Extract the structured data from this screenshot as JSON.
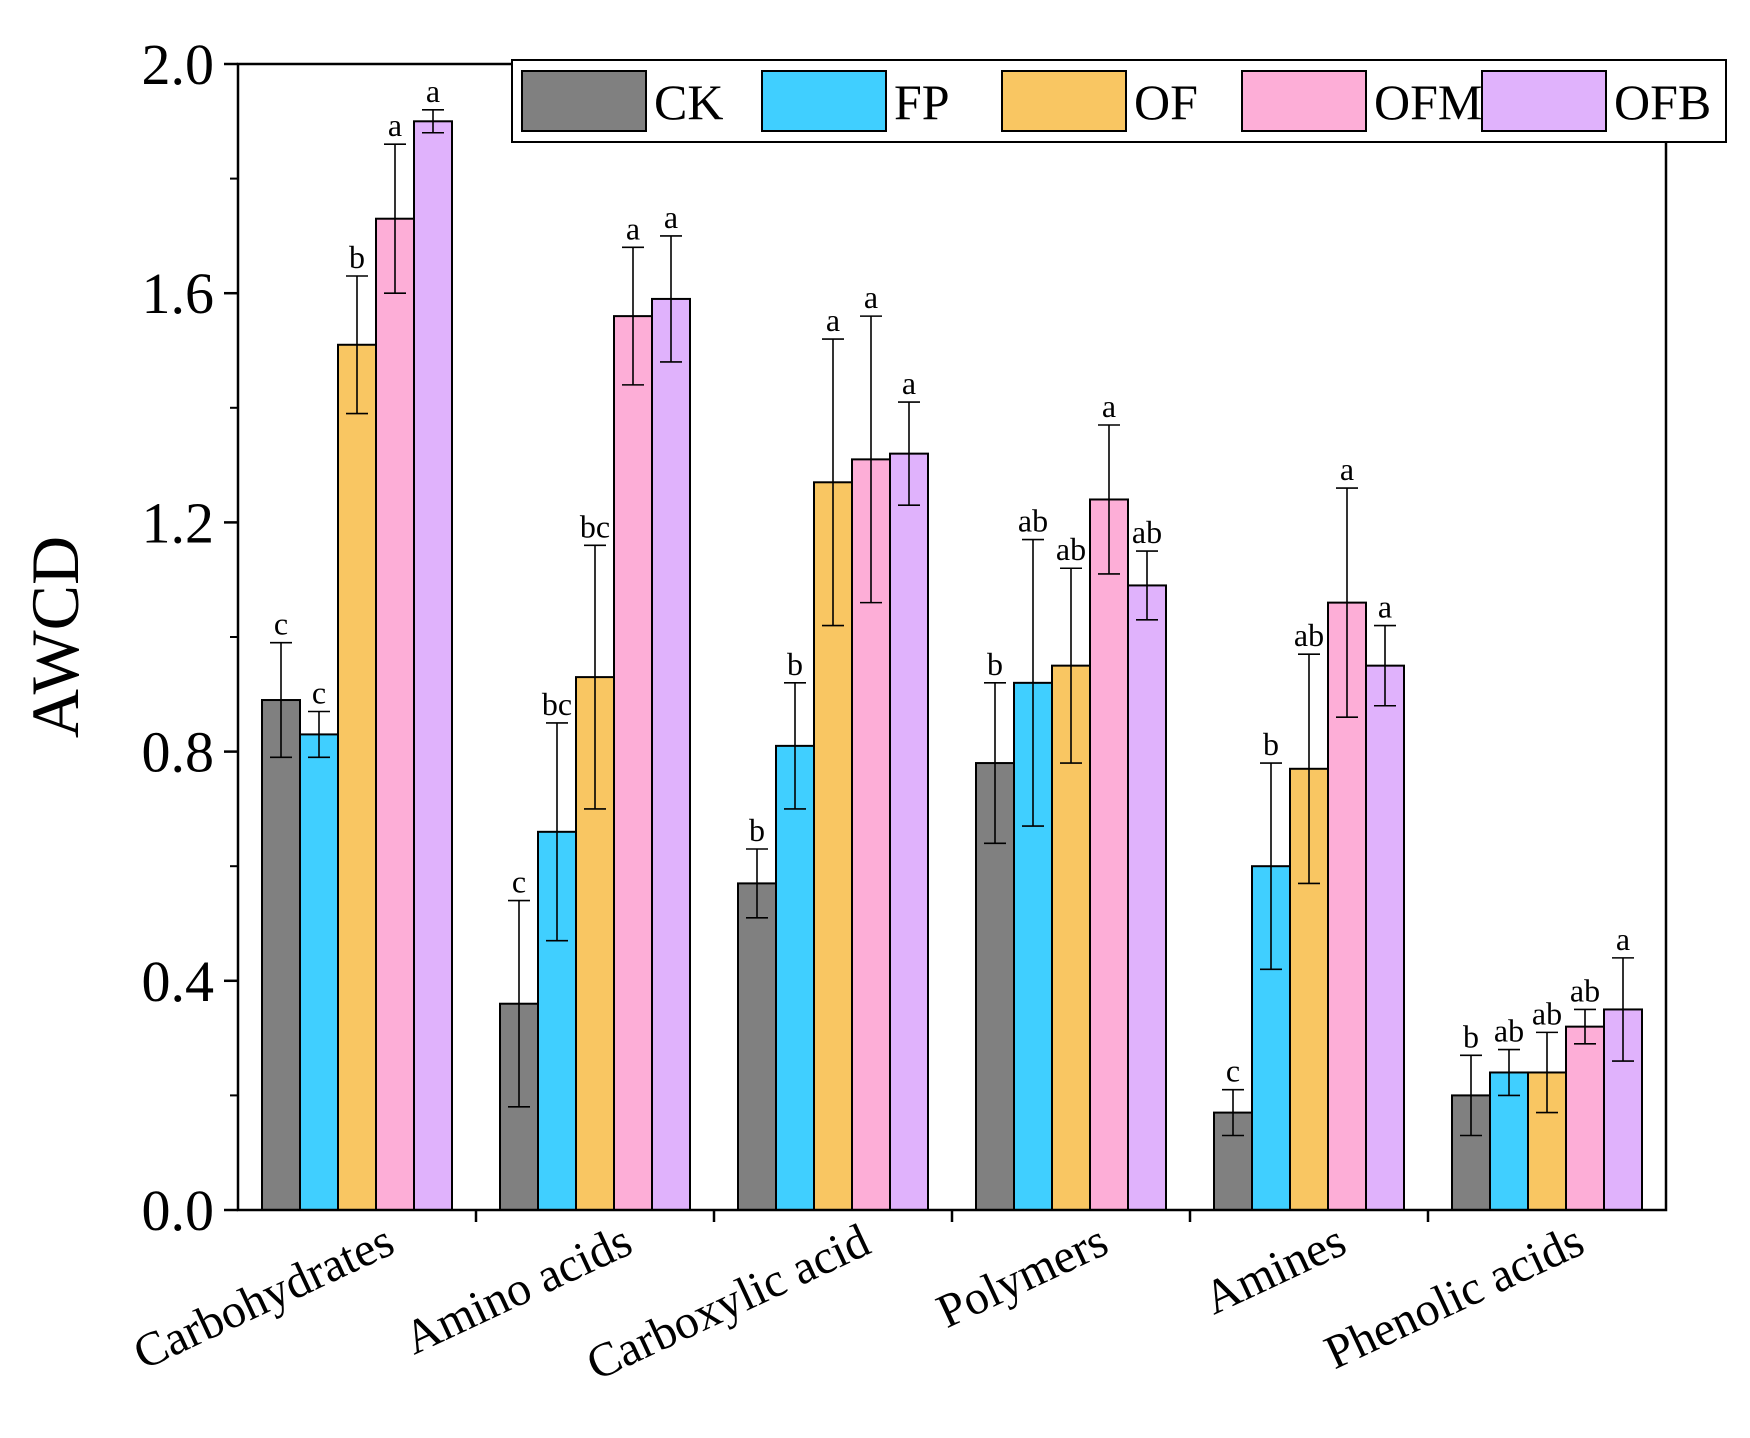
{
  "chart_data": {
    "type": "bar",
    "ylabel": "AWCD",
    "ylim": [
      0,
      2.0
    ],
    "yticks": [
      "0.0",
      "0.4",
      "0.8",
      "1.2",
      "1.6",
      "2.0"
    ],
    "legend_position": "top-right",
    "categories": [
      "Carbohydrates",
      "Amino acids",
      "Carboxylic acid",
      "Polymers",
      "Amines",
      "Phenolic acids"
    ],
    "series": [
      {
        "name": "CK",
        "color": "#808080",
        "values": [
          0.89,
          0.36,
          0.57,
          0.78,
          0.17,
          0.2
        ],
        "errors": [
          0.1,
          0.18,
          0.06,
          0.14,
          0.04,
          0.07
        ],
        "letters": [
          "c",
          "c",
          "b",
          "b",
          "c",
          "b"
        ]
      },
      {
        "name": "FP",
        "color": "#40CFFF",
        "values": [
          0.83,
          0.66,
          0.81,
          0.92,
          0.6,
          0.24
        ],
        "errors": [
          0.04,
          0.19,
          0.11,
          0.25,
          0.18,
          0.04
        ],
        "letters": [
          "c",
          "bc",
          "b",
          "ab",
          "b",
          "ab"
        ]
      },
      {
        "name": "OF",
        "color": "#F9C662",
        "values": [
          1.51,
          0.93,
          1.27,
          0.95,
          0.77,
          0.24
        ],
        "errors": [
          0.12,
          0.23,
          0.25,
          0.17,
          0.2,
          0.07
        ],
        "letters": [
          "b",
          "bc",
          "a",
          "ab",
          "ab",
          "ab"
        ]
      },
      {
        "name": "OFM",
        "color": "#FDAED7",
        "values": [
          1.73,
          1.56,
          1.31,
          1.24,
          1.06,
          0.32
        ],
        "errors": [
          0.13,
          0.12,
          0.25,
          0.13,
          0.2,
          0.03
        ],
        "letters": [
          "a",
          "a",
          "a",
          "a",
          "a",
          "ab"
        ]
      },
      {
        "name": "OFB",
        "color": "#E0B2FC",
        "values": [
          1.9,
          1.59,
          1.32,
          1.09,
          0.95,
          0.35
        ],
        "errors": [
          0.02,
          0.11,
          0.09,
          0.06,
          0.07,
          0.09
        ],
        "letters": [
          "a",
          "a",
          "a",
          "ab",
          "a",
          "a"
        ]
      }
    ]
  }
}
